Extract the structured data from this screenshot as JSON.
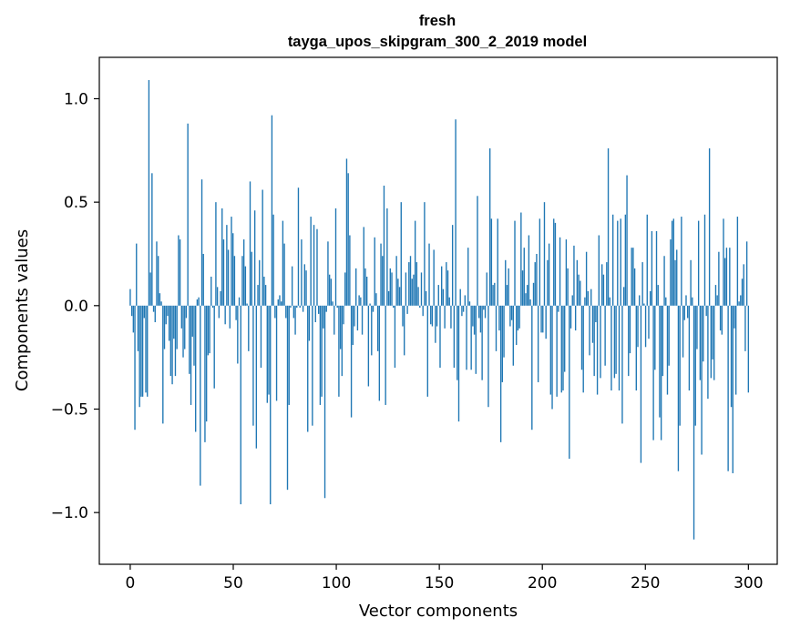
{
  "chart_data": {
    "type": "bar",
    "title": "fresh",
    "subtitle": "tayga_upos_skipgram_300_2_2019 model",
    "xlabel": "Vector components",
    "ylabel": "Components values",
    "xlim": [
      -15,
      314
    ],
    "ylim": [
      -1.25,
      1.2
    ],
    "xticks": [
      0,
      50,
      100,
      150,
      200,
      250,
      300
    ],
    "yticks": [
      -1.0,
      -0.5,
      0.0,
      0.5,
      1.0
    ],
    "xtick_labels": [
      "0",
      "50",
      "100",
      "150",
      "200",
      "250",
      "300"
    ],
    "ytick_labels": [
      "−1.0",
      "−0.5",
      "0.0",
      "0.5",
      "1.0"
    ],
    "bar_color": "#1f77b4",
    "values": [
      0.08,
      -0.05,
      -0.13,
      -0.6,
      0.3,
      -0.22,
      -0.49,
      -0.44,
      -0.44,
      -0.06,
      -0.42,
      -0.44,
      1.09,
      0.16,
      0.64,
      -0.03,
      -0.08,
      0.31,
      0.24,
      0.06,
      0.02,
      -0.57,
      -0.21,
      -0.09,
      -0.05,
      -0.17,
      -0.34,
      -0.38,
      -0.16,
      -0.34,
      -0.21,
      0.34,
      0.32,
      -0.11,
      -0.25,
      -0.21,
      -0.06,
      0.88,
      -0.33,
      -0.48,
      -0.15,
      -0.29,
      -0.61,
      0.03,
      0.04,
      -0.87,
      0.61,
      0.25,
      -0.66,
      -0.56,
      -0.24,
      -0.23,
      0.14,
      -0.01,
      -0.4,
      0.5,
      0.09,
      -0.06,
      0.07,
      0.47,
      0.32,
      -0.09,
      0.39,
      0.27,
      -0.11,
      0.43,
      0.35,
      0.24,
      -0.07,
      -0.28,
      0.04,
      -0.96,
      0.24,
      0.32,
      0.19,
      0.01,
      -0.22,
      0.6,
      0.26,
      -0.58,
      0.46,
      -0.69,
      0.1,
      0.22,
      -0.3,
      0.56,
      0.14,
      0.1,
      -0.47,
      -0.43,
      -0.96,
      0.92,
      0.44,
      -0.06,
      -0.46,
      0.03,
      0.05,
      0.02,
      0.41,
      0.3,
      -0.06,
      -0.89,
      -0.48,
      -0.01,
      0.19,
      -0.06,
      -0.14,
      -0.01,
      0.57,
      -0.01,
      0.32,
      -0.03,
      0.2,
      0.17,
      -0.61,
      -0.17,
      0.43,
      -0.58,
      0.39,
      -0.08,
      0.37,
      -0.04,
      -0.48,
      -0.44,
      -0.11,
      -0.93,
      -0.03,
      0.31,
      0.15,
      0.13,
      0.02,
      -0.14,
      0.47,
      -0.01,
      -0.44,
      -0.21,
      -0.34,
      -0.09,
      0.16,
      0.71,
      0.64,
      0.34,
      -0.54,
      -0.19,
      -0.1,
      0.18,
      -0.12,
      0.05,
      0.04,
      -0.14,
      0.38,
      0.18,
      0.14,
      -0.39,
      0.01,
      -0.24,
      -0.03,
      0.33,
      0.06,
      -0.22,
      -0.46,
      0.3,
      0.24,
      0.58,
      -0.48,
      0.47,
      0.07,
      0.18,
      0.16,
      -0.01,
      -0.3,
      0.24,
      0.13,
      0.09,
      0.5,
      -0.1,
      -0.24,
      0.16,
      -0.04,
      0.21,
      0.24,
      0.13,
      0.15,
      0.41,
      0.21,
      0.09,
      -0.01,
      0.16,
      -0.05,
      0.5,
      0.07,
      -0.44,
      0.3,
      -0.09,
      -0.1,
      0.27,
      -0.18,
      -0.1,
      0.1,
      -0.3,
      0.19,
      0.08,
      -0.11,
      0.21,
      0.17,
      0.04,
      -0.11,
      0.39,
      -0.3,
      0.9,
      -0.36,
      -0.56,
      0.08,
      -0.05,
      -0.03,
      0.05,
      -0.31,
      0.28,
      0.02,
      -0.31,
      -0.1,
      -0.14,
      -0.33,
      0.53,
      -0.06,
      -0.13,
      -0.36,
      -0.02,
      -0.06,
      0.16,
      -0.49,
      0.76,
      0.42,
      0.1,
      0.11,
      -0.22,
      0.42,
      -0.12,
      -0.66,
      -0.37,
      -0.25,
      0.22,
      0.1,
      0.18,
      -0.1,
      -0.07,
      -0.29,
      0.41,
      -0.19,
      -0.12,
      -0.11,
      0.45,
      0.17,
      0.28,
      0.06,
      0.1,
      0.34,
      0.03,
      -0.6,
      0.11,
      0.21,
      0.25,
      -0.37,
      0.42,
      -0.13,
      -0.13,
      0.5,
      -0.16,
      0.22,
      0.3,
      -0.43,
      -0.5,
      0.42,
      0.4,
      -0.44,
      -0.03,
      0.33,
      -0.42,
      -0.41,
      -0.32,
      0.32,
      0.18,
      -0.74,
      -0.11,
      0.05,
      0.29,
      -0.12,
      0.22,
      0.15,
      0.12,
      -0.31,
      -0.42,
      0.04,
      0.26,
      0.07,
      -0.24,
      0.08,
      -0.18,
      -0.34,
      -0.08,
      -0.43,
      0.34,
      -0.35,
      0.2,
      0.15,
      -0.29,
      0.21,
      0.76,
      0.04,
      -0.41,
      0.44,
      -0.35,
      -0.33,
      0.41,
      -0.41,
      0.42,
      -0.57,
      0.09,
      0.44,
      0.63,
      -0.34,
      -0.23,
      0.28,
      0.28,
      0.18,
      -0.41,
      -0.2,
      0.05,
      -0.76,
      0.21,
      0.01,
      -0.2,
      0.44,
      -0.16,
      0.07,
      0.36,
      -0.65,
      -0.31,
      0.36,
      0.1,
      -0.54,
      -0.65,
      -0.34,
      0.24,
      0.04,
      -0.43,
      -0.29,
      0.32,
      0.41,
      0.42,
      0.22,
      0.27,
      -0.8,
      -0.58,
      0.43,
      -0.25,
      -0.07,
      0.05,
      -0.06,
      -0.41,
      0.22,
      0.04,
      -1.13,
      -0.58,
      -0.21,
      0.41,
      -0.36,
      -0.72,
      -0.27,
      0.44,
      -0.05,
      -0.45,
      0.76,
      -0.35,
      -0.26,
      -0.36,
      0.1,
      0.05,
      0.26,
      -0.12,
      -0.14,
      0.42,
      0.23,
      0.28,
      -0.8,
      0.28,
      -0.49,
      -0.81,
      -0.11,
      -0.43,
      0.43,
      0.02,
      0.05,
      0.13,
      0.2,
      -0.22,
      0.31,
      -0.42
    ]
  }
}
